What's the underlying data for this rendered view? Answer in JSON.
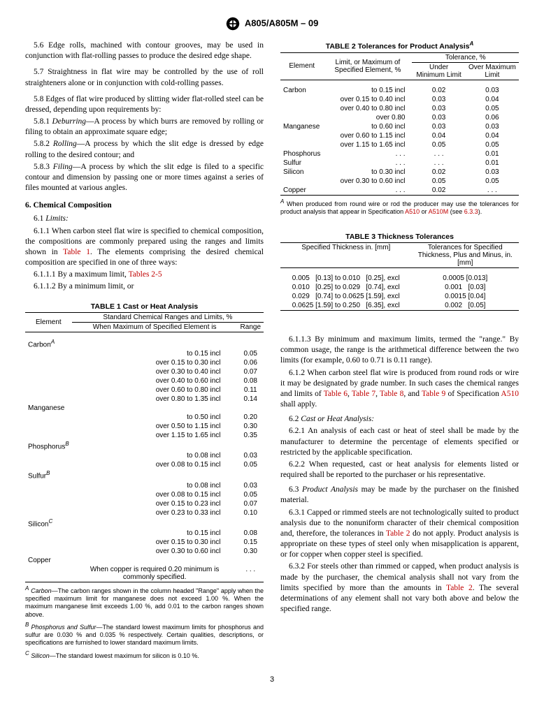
{
  "header": {
    "standard": "A805/A805M – 09"
  },
  "left": {
    "p56": "5.6 Edge rolls, machined with contour grooves, may be used in conjunction with flat-rolling passes to produce the desired edge shape.",
    "p57": "5.7 Straightness in flat wire may be controlled by the use of roll straighteners alone or in conjunction with cold-rolling passes.",
    "p58": "5.8 Edges of flat wire produced by slitting wider flat-rolled steel can be dressed, depending upon requirements by:",
    "p581_lead": "5.8.1 ",
    "p581_term": "Deburring",
    "p581_rest": "—A process by which burrs are removed by rolling or filing to obtain an approximate square edge;",
    "p582_lead": "5.8.2 ",
    "p582_term": "Rolling",
    "p582_rest": "—A process by which the slit edge is dressed by edge rolling to the desired contour; and",
    "p583_lead": "5.8.3 ",
    "p583_term": "Filing",
    "p583_rest": "—A process by which the slit edge is filed to a specific contour and dimension by passing one or more times against a series of files mounted at various angles.",
    "h6": "6.  Chemical Composition",
    "p61_lead": "6.1 ",
    "p61_term": "Limits:",
    "p611_a": "6.1.1 When carbon steel flat wire is specified to chemical composition, the compositions are commonly prepared using the ranges and limits shown in ",
    "p611_link": "Table 1",
    "p611_b": ". The elements comprising the desired chemical composition are specified in one of three ways:",
    "p6111": "6.1.1.1 By a maximum limit, ",
    "p6111_link": "Tables 2-5",
    "p6112": "6.1.1.2 By a minimum limit, or"
  },
  "table1": {
    "title": "TABLE 1 Cast or Heat Analysis",
    "group_header": "Standard Chemical Ranges and Limits, %",
    "col_element": "Element",
    "col_when": "When Maximum of Specified Element is",
    "col_range": "Range",
    "carbon_label": "Carbon",
    "carbon_fn": "A",
    "carbon_rows": [
      [
        "to 0.15 incl",
        "0.05"
      ],
      [
        "over 0.15 to 0.30 incl",
        "0.06"
      ],
      [
        "over 0.30 to 0.40 incl",
        "0.07"
      ],
      [
        "over 0.40 to 0.60 incl",
        "0.08"
      ],
      [
        "over 0.60 to 0.80 incl",
        "0.11"
      ],
      [
        "over 0.80 to 1.35 incl",
        "0.14"
      ]
    ],
    "manganese_label": "Manganese",
    "manganese_rows": [
      [
        "to 0.50 incl",
        "0.20"
      ],
      [
        "over 0.50 to 1.15 incl",
        "0.30"
      ],
      [
        "over 1.15 to 1.65 incl",
        "0.35"
      ]
    ],
    "phosphorus_label": "Phosphorus",
    "phosphorus_fn": "B",
    "phosphorus_rows": [
      [
        "to 0.08 incl",
        "0.03"
      ],
      [
        "over 0.08 to 0.15 incl",
        "0.05"
      ]
    ],
    "sulfur_label": "Sulfur",
    "sulfur_fn": "B",
    "sulfur_rows": [
      [
        "to 0.08 incl",
        "0.03"
      ],
      [
        "over 0.08 to 0.15 incl",
        "0.05"
      ],
      [
        "over 0.15 to 0.23 incl",
        "0.07"
      ],
      [
        "over 0.23 to 0.33 incl",
        "0.10"
      ]
    ],
    "silicon_label": "Silicon",
    "silicon_fn": "C",
    "silicon_rows": [
      [
        "to 0.15 incl",
        "0.08"
      ],
      [
        "over 0.15 to 0.30 incl",
        "0.15"
      ],
      [
        "over 0.30 to 0.60 incl",
        "0.30"
      ]
    ],
    "copper_label": "Copper",
    "copper_note": "When copper is required 0.20 minimum is commonly specified.",
    "copper_range": ". . .",
    "fnA_sup": "A",
    "fnA_lead": " Carbon",
    "fnA_text": "—The carbon ranges shown in the column headed \"Range\" apply when the specified maximum limit for manganese does not exceed 1.00 %. When the maximum manganese limit exceeds 1.00 %, add 0.01 to the carbon ranges shown above.",
    "fnB_sup": "B",
    "fnB_lead": " Phosphorus and Sulfur",
    "fnB_text": "—The standard lowest maximum limits for phosphorus and sulfur are 0.030 % and 0.035 % respectively. Certain qualities, descriptions, or specifications are furnished to lower standard maximum limits.",
    "fnC_sup": "C",
    "fnC_lead": " Silicon",
    "fnC_text": "—The standard lowest maximum for silicon is 0.10 %."
  },
  "table2": {
    "title": "TABLE 2 Tolerances for Product Analysis",
    "title_fn": "A",
    "col_element": "Element",
    "col_limit": "Limit, or Maximum of Specified Element, %",
    "col_tol_group": "Tolerance, %",
    "col_under": "Under Minimum Limit",
    "col_over": "Over Maximum Limit",
    "rows": [
      [
        "Carbon",
        "to 0.15 incl",
        "0.02",
        "0.03"
      ],
      [
        "",
        "over 0.15 to 0.40 incl",
        "0.03",
        "0.04"
      ],
      [
        "",
        "over 0.40 to 0.80 incl",
        "0.03",
        "0.05"
      ],
      [
        "",
        "over 0.80",
        "0.03",
        "0.06"
      ],
      [
        "Manganese",
        "to 0.60 incl",
        "0.03",
        "0.03"
      ],
      [
        "",
        "over 0.60 to 1.15 incl",
        "0.04",
        "0.04"
      ],
      [
        "",
        "over 1.15 to 1.65 incl",
        "0.05",
        "0.05"
      ],
      [
        "Phosphorus",
        ". . .",
        ". . .",
        "0.01"
      ],
      [
        "Sulfur",
        ". . .",
        ". . .",
        "0.01"
      ],
      [
        "Silicon",
        "to 0.30 incl",
        "0.02",
        "0.03"
      ],
      [
        "",
        "over 0.30 to 0.60 incl",
        "0.05",
        "0.05"
      ],
      [
        "Copper",
        ". . .",
        "0.02",
        ". . ."
      ]
    ],
    "fn_sup": "A",
    "fn_text_a": " When produced from round wire or rod the producer may use the tolerances for product analysis that appear in Specification ",
    "fn_link1": "A510",
    "fn_or": " or ",
    "fn_link2": "A510M",
    "fn_text_b": " (see ",
    "fn_link3": "6.3.3",
    "fn_text_c": ")."
  },
  "table3": {
    "title": "TABLE 3 Thickness Tolerances",
    "col_spec": "Specified Thickness in. [mm]",
    "col_tol": "Tolerances for Specified Thickness, Plus and Minus, in. [mm]",
    "rows": [
      [
        "0.005   [0.13] to 0.010   [0.25], excl",
        "0.0005 [0.013]"
      ],
      [
        "0.010   [0.25] to 0.029   [0.74], excl",
        "0.001   [0.03]"
      ],
      [
        "0.029   [0.74] to 0.0625 [1.59], excl",
        "0.0015 [0.04]"
      ],
      [
        "0.0625 [1.59] to 0.250   [6.35], excl",
        "0.002   [0.05]"
      ]
    ]
  },
  "right": {
    "p6113_a": "6.1.1.3 By minimum and maximum limits, termed the \"range.\" By common usage, the range is the arithmetical difference between the two limits (for example, 0.60 to 0.71 is 0.11 range).",
    "p612_a": "6.1.2 When carbon steel flat wire is produced from round rods or wire it may be designated by grade number. In such cases the chemical ranges and limits of ",
    "p612_l1": "Table 6",
    "p612_c1": ", ",
    "p612_l2": "Table 7",
    "p612_c2": ", ",
    "p612_l3": "Table 8",
    "p612_c3": ", and ",
    "p612_l4": "Table 9",
    "p612_c4": " of Specification ",
    "p612_l5": "A510",
    "p612_c5": " shall apply.",
    "p62_lead": "6.2 ",
    "p62_term": "Cast or Heat Analysis:",
    "p621": "6.2.1 An analysis of each cast or heat of steel shall be made by the manufacturer to determine the percentage of elements specified or restricted by the applicable specification.",
    "p622": "6.2.2 When requested, cast or heat analysis for elements listed or required shall be reported to the purchaser or his representative.",
    "p63_lead": "6.3 ",
    "p63_term": "Product Analysis",
    "p63_rest": " may be made by the purchaser on the finished material.",
    "p631_a": "6.3.1 Capped or rimmed steels are not technologically suited to product analysis due to the nonuniform character of their chemical composition and, therefore, the tolerances in ",
    "p631_l1": "Table 2",
    "p631_b": " do not apply. Product analysis is appropriate on these types of steel only when misapplication is apparent, or for copper when copper steel is specified.",
    "p632_a": "6.3.2 For steels other than rimmed or capped, when product analysis is made by the purchaser, the chemical analysis shall not vary from the limits specified by more than the amounts in ",
    "p632_l1": "Table 2",
    "p632_b": ". The several determinations of any element shall not vary both above and below the specified range."
  },
  "page": "3"
}
